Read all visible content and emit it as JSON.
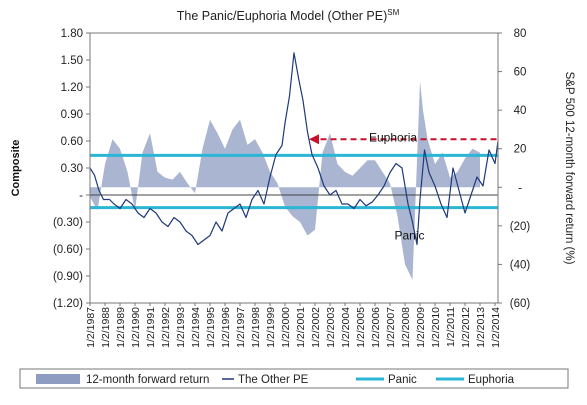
{
  "chart_data": {
    "type": "line",
    "title": "The Panic/Euphoria Model (Other PE)",
    "title_superscript": "SM",
    "ylabel": "Composite",
    "y2label": "S&P 500 12-month forward return (%)",
    "ylim": [
      -1.2,
      1.8
    ],
    "y2lim": [
      -60,
      80
    ],
    "y_tick_labels": [
      "1.80",
      "1.50",
      "1.20",
      "0.90",
      "0.60",
      "0.30",
      "-",
      "(0.30)",
      "(0.60)",
      "(0.90)",
      "(1.20)"
    ],
    "y2_tick_labels": [
      "80",
      "60",
      "40",
      "20",
      "-",
      "(20)",
      "(40)",
      "(60)"
    ],
    "x_tick_labels": [
      "1/2/1987",
      "1/2/1988",
      "1/2/1989",
      "1/2/1990",
      "1/2/1991",
      "1/2/1992",
      "1/2/1993",
      "1/2/1994",
      "1/2/1995",
      "1/2/1996",
      "1/2/1997",
      "1/2/1998",
      "1/2/1999",
      "1/2/2000",
      "1/2/2001",
      "1/2/2002",
      "1/2/2003",
      "1/2/2004",
      "1/2/2005",
      "1/2/2006",
      "1/2/2007",
      "1/2/2008",
      "1/2/2009",
      "1/2/2010",
      "1/2/2011",
      "1/2/2012",
      "1/2/2013",
      "1/2/2014"
    ],
    "xlim": [
      1987.0,
      2014.2
    ],
    "grid": false,
    "legend_position": "bottom",
    "series": [
      {
        "name": "12-month forward return",
        "axis": "right",
        "kind": "area",
        "color": "#8e9cc2",
        "x": [
          1987.0,
          1987.5,
          1988.0,
          1988.5,
          1989.0,
          1989.5,
          1990.0,
          1990.5,
          1991.0,
          1991.5,
          1992.0,
          1992.5,
          1993.0,
          1993.5,
          1994.0,
          1994.5,
          1995.0,
          1995.5,
          1996.0,
          1996.5,
          1997.0,
          1997.5,
          1998.0,
          1998.5,
          1999.0,
          1999.5,
          2000.0,
          2000.5,
          2001.0,
          2001.5,
          2002.0,
          2002.5,
          2003.0,
          2003.5,
          2004.0,
          2004.5,
          2005.0,
          2005.5,
          2006.0,
          2006.5,
          2007.0,
          2007.5,
          2008.0,
          2008.5,
          2009.0,
          2009.2,
          2009.5,
          2010.0,
          2010.5,
          2011.0,
          2011.5,
          2012.0,
          2012.5,
          2013.0
        ],
        "values": [
          -5,
          -12,
          12,
          25,
          20,
          8,
          -12,
          18,
          28,
          8,
          5,
          4,
          8,
          2,
          -3,
          20,
          35,
          28,
          20,
          30,
          35,
          22,
          25,
          18,
          8,
          2,
          -10,
          -15,
          -18,
          -25,
          -22,
          18,
          28,
          12,
          8,
          6,
          10,
          14,
          14,
          8,
          2,
          -15,
          -40,
          -48,
          55,
          40,
          25,
          12,
          18,
          5,
          8,
          15,
          20,
          18
        ]
      },
      {
        "name": "The Other PE",
        "axis": "left",
        "kind": "line",
        "color": "#1f3a7a",
        "x": [
          1987.0,
          1987.3,
          1987.6,
          1987.9,
          1988.3,
          1988.6,
          1989.0,
          1989.4,
          1989.8,
          1990.2,
          1990.6,
          1991.0,
          1991.4,
          1991.8,
          1992.2,
          1992.6,
          1993.0,
          1993.4,
          1993.8,
          1994.2,
          1994.6,
          1995.0,
          1995.4,
          1995.8,
          1996.2,
          1996.6,
          1997.0,
          1997.4,
          1997.8,
          1998.2,
          1998.6,
          1999.0,
          1999.4,
          1999.8,
          2000.0,
          2000.3,
          2000.6,
          2000.9,
          2001.2,
          2001.5,
          2001.8,
          2002.2,
          2002.6,
          2003.0,
          2003.4,
          2003.8,
          2004.2,
          2004.6,
          2005.0,
          2005.4,
          2005.8,
          2006.2,
          2006.6,
          2007.0,
          2007.4,
          2007.8,
          2008.2,
          2008.5,
          2008.8,
          2009.0,
          2009.3,
          2009.6,
          2010.0,
          2010.4,
          2010.8,
          2011.2,
          2011.6,
          2012.0,
          2012.4,
          2012.8,
          2013.2,
          2013.6,
          2014.0,
          2014.2
        ],
        "values": [
          0.3,
          0.22,
          0.05,
          -0.05,
          -0.05,
          -0.1,
          -0.15,
          -0.05,
          -0.1,
          -0.2,
          -0.25,
          -0.15,
          -0.2,
          -0.3,
          -0.35,
          -0.25,
          -0.3,
          -0.4,
          -0.45,
          -0.55,
          -0.5,
          -0.45,
          -0.3,
          -0.4,
          -0.2,
          -0.15,
          -0.1,
          -0.25,
          -0.05,
          0.05,
          -0.1,
          0.2,
          0.45,
          0.55,
          0.8,
          1.1,
          1.58,
          1.3,
          1.05,
          0.7,
          0.45,
          0.3,
          0.1,
          0.0,
          0.05,
          -0.1,
          -0.1,
          -0.15,
          -0.05,
          -0.12,
          -0.08,
          0.0,
          0.1,
          0.25,
          0.35,
          0.3,
          -0.1,
          -0.3,
          -0.55,
          -0.05,
          0.5,
          0.25,
          0.1,
          -0.1,
          -0.25,
          0.3,
          0.05,
          -0.2,
          0.0,
          0.2,
          0.1,
          0.5,
          0.35,
          0.6
        ]
      },
      {
        "name": "Panic",
        "axis": "left",
        "kind": "hline",
        "color": "#2ab6d4",
        "values": [
          -0.14
        ]
      },
      {
        "name": "Euphoria",
        "axis": "left",
        "kind": "hline",
        "color": "#2ab6d4",
        "values": [
          0.44
        ]
      }
    ],
    "annotations": [
      {
        "text": "Euphoria",
        "x": 2005.6,
        "y": 0.64,
        "axis": "left"
      },
      {
        "text": "Panic",
        "x": 2007.3,
        "y": -0.45,
        "axis": "left"
      }
    ],
    "arrow": {
      "from_x": 2014.1,
      "to_x": 2001.6,
      "y": 0.62,
      "color": "#c8102e",
      "style": "dashed"
    }
  }
}
